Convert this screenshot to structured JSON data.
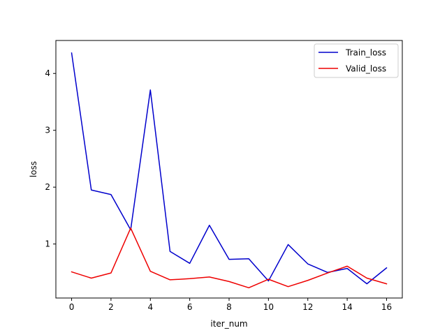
{
  "chart_data": {
    "type": "line",
    "title": "",
    "xlabel": "iter_num",
    "ylabel": "loss",
    "x": [
      0,
      1,
      2,
      3,
      4,
      5,
      6,
      7,
      8,
      9,
      10,
      11,
      12,
      13,
      14,
      15,
      16
    ],
    "xlim": [
      -0.8,
      16.8
    ],
    "ylim": [
      0.05,
      4.58
    ],
    "xticks": [
      0,
      2,
      4,
      6,
      8,
      10,
      12,
      14,
      16
    ],
    "yticks": [
      1,
      2,
      3,
      4
    ],
    "grid": false,
    "legend_position": "upper right",
    "series": [
      {
        "name": "Train_loss",
        "color": "#0000cc",
        "values": [
          4.36,
          1.95,
          1.87,
          1.25,
          3.71,
          0.87,
          0.66,
          1.33,
          0.73,
          0.74,
          0.35,
          0.99,
          0.65,
          0.5,
          0.57,
          0.3,
          0.58
        ]
      },
      {
        "name": "Valid_loss",
        "color": "#ee0000",
        "values": [
          0.51,
          0.4,
          0.49,
          1.28,
          0.52,
          0.37,
          0.39,
          0.42,
          0.34,
          0.23,
          0.38,
          0.25,
          0.36,
          0.49,
          0.61,
          0.4,
          0.3
        ]
      }
    ]
  }
}
